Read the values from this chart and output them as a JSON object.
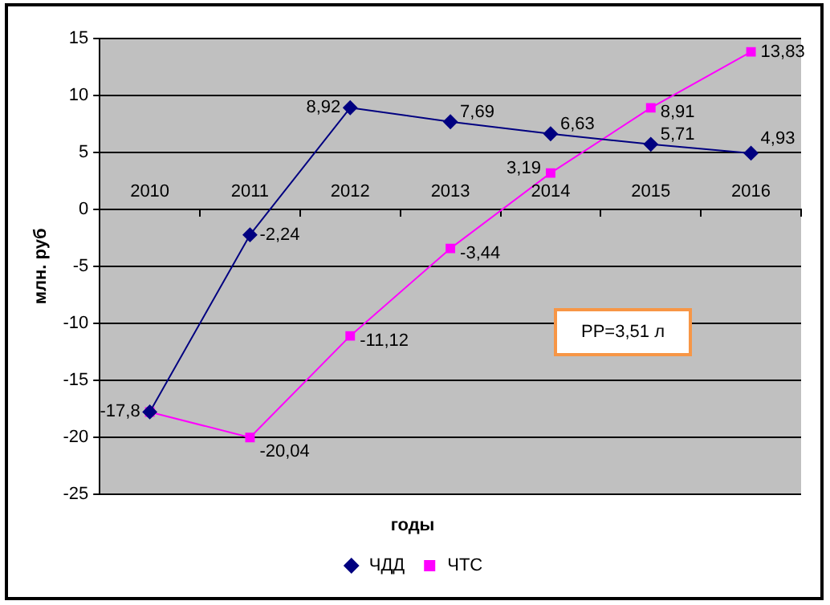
{
  "chart_data": {
    "type": "line",
    "xlabel": "годы",
    "ylabel": "млн. руб",
    "categories": [
      "2010",
      "2011",
      "2012",
      "2013",
      "2014",
      "2015",
      "2016"
    ],
    "series": [
      {
        "name": "ЧДД",
        "color": "#000080",
        "marker": "diamond",
        "values": [
          -17.8,
          -2.24,
          8.92,
          7.69,
          6.63,
          5.71,
          4.93
        ],
        "value_labels": [
          null,
          "-2,24",
          "8,92",
          "7,69",
          "6,63",
          "5,71",
          "4,93"
        ]
      },
      {
        "name": "ЧТС",
        "color": "#ff00ff",
        "marker": "square",
        "values": [
          -17.8,
          -20.04,
          -11.12,
          -3.44,
          3.19,
          8.91,
          13.83
        ],
        "value_labels": [
          "-17,8",
          "-20,04",
          "-11,12",
          "-3,44",
          "3,19",
          "8,91",
          "13,83"
        ]
      }
    ],
    "ylim": [
      -25,
      15
    ],
    "yticks": [
      -25,
      -20,
      -15,
      -10,
      -5,
      0,
      5,
      10,
      15
    ],
    "grid": "y",
    "legend": "bottom",
    "line_style": "solid",
    "annotations": [
      "РР=3,51 л"
    ]
  }
}
